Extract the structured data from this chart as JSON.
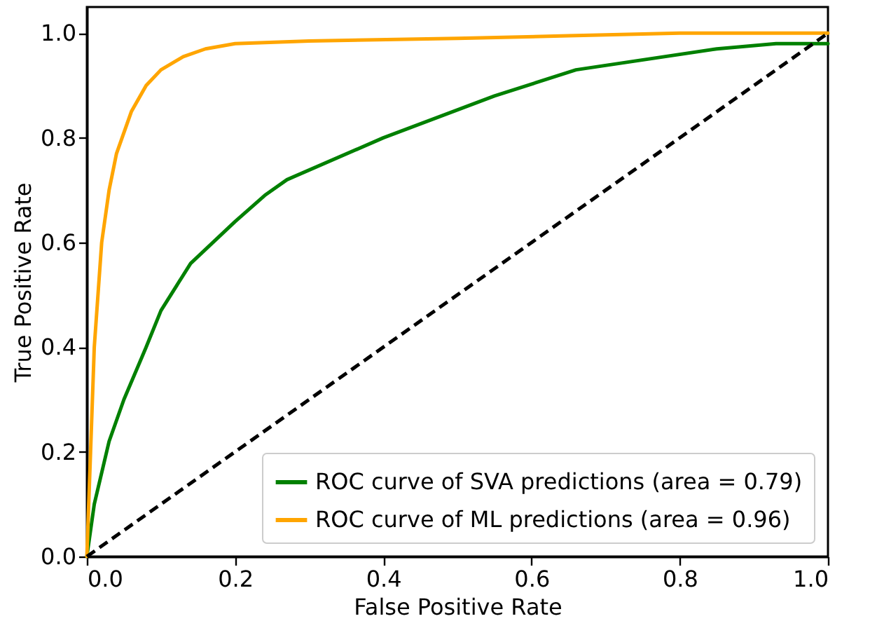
{
  "chart_data": {
    "type": "line",
    "xlabel": "False Positive Rate",
    "ylabel": "True Positive Rate",
    "xlim": [
      0,
      1
    ],
    "ylim": [
      0,
      1.05
    ],
    "xticks": [
      {
        "value": 0,
        "label": "0.0"
      },
      0.2,
      0.4,
      0.6,
      0.8,
      {
        "value": 1,
        "label": "1.0"
      }
    ],
    "yticks": [
      {
        "value": 0,
        "label": "0.0"
      },
      0.2,
      0.4,
      0.6,
      0.8,
      {
        "value": 1,
        "label": "1.0"
      }
    ],
    "grid": false,
    "legend": "bottom right",
    "line_style": "solid",
    "series": [
      {
        "name": "ROC curve of SVA predictions (area = 0.79)",
        "color": "#008000",
        "x": [
          0,
          0.01,
          0.03,
          0.05,
          0.08,
          0.1,
          0.14,
          0.2,
          0.24,
          0.27,
          0.4,
          0.55,
          0.66,
          0.85,
          0.93,
          1
        ],
        "values": [
          0,
          0.1,
          0.22,
          0.3,
          0.4,
          0.47,
          0.56,
          0.64,
          0.69,
          0.72,
          0.8,
          0.88,
          0.93,
          0.97,
          0.98,
          0.98
        ]
      },
      {
        "name": "ROC curve of ML predictions (area = 0.96)",
        "color": "#ffa500",
        "x": [
          0,
          0.005,
          0.01,
          0.02,
          0.03,
          0.04,
          0.06,
          0.08,
          0.1,
          0.13,
          0.16,
          0.2,
          0.3,
          0.5,
          0.65,
          0.8,
          1
        ],
        "values": [
          0,
          0.2,
          0.4,
          0.6,
          0.7,
          0.77,
          0.85,
          0.9,
          0.93,
          0.955,
          0.97,
          0.98,
          0.985,
          0.99,
          0.995,
          1,
          1
        ]
      },
      {
        "color": "#000000",
        "line_style": "dashed",
        "x": [
          0,
          1
        ],
        "values": [
          0,
          1
        ]
      }
    ]
  }
}
